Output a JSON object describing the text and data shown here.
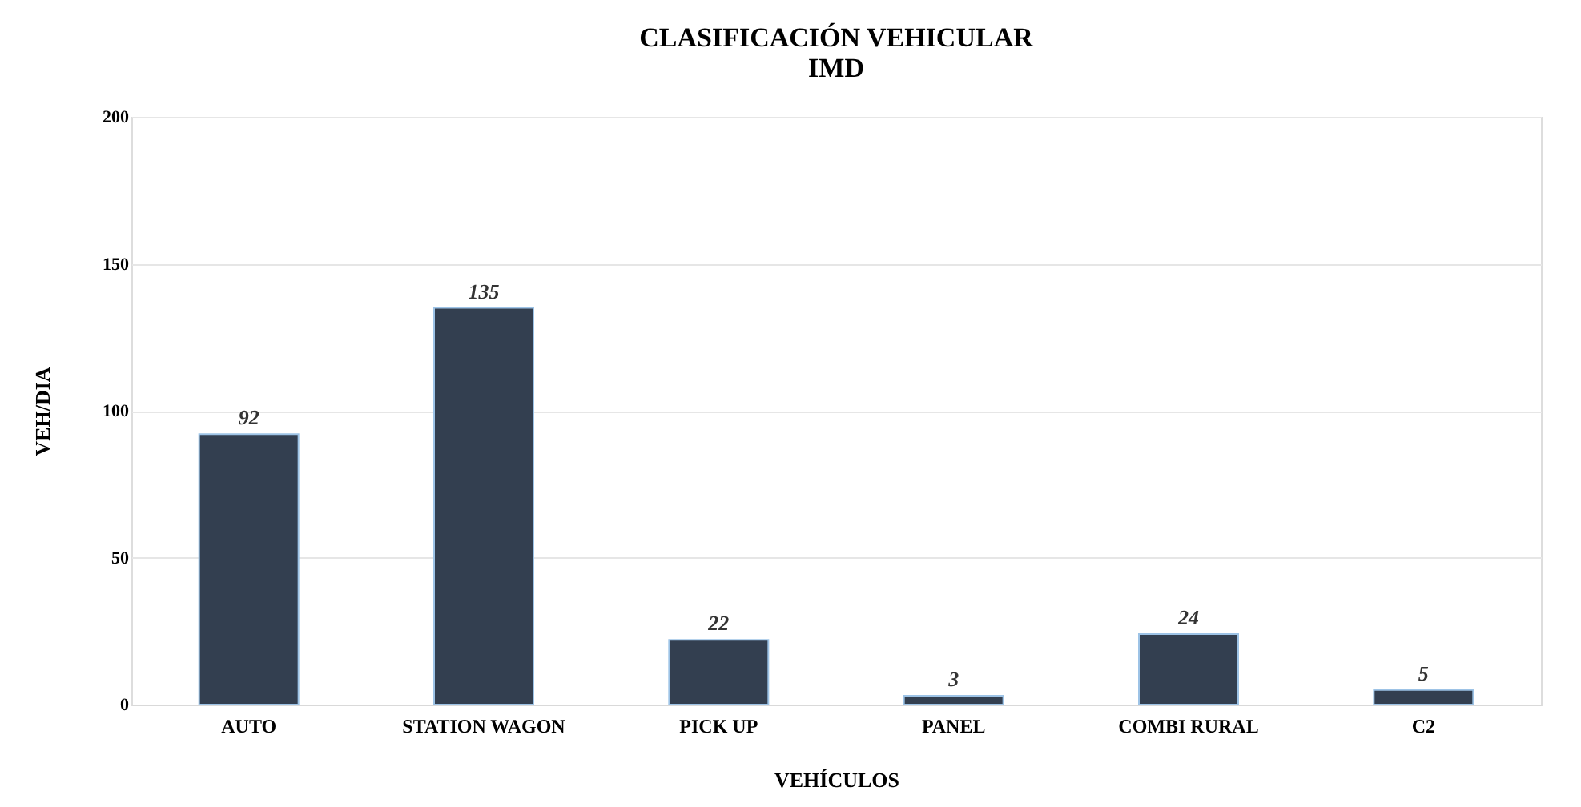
{
  "chart_data": {
    "type": "bar",
    "title": "CLASIFICACIÓN VEHICULAR",
    "subtitle": "IMD",
    "xlabel": "VEHÍCULOS",
    "ylabel": "VEH/DIA",
    "categories": [
      "AUTO",
      "STATION WAGON",
      "PICK UP",
      "PANEL",
      "COMBI RURAL",
      "C2"
    ],
    "values": [
      92,
      135,
      22,
      3,
      24,
      5
    ],
    "color": "#333f50",
    "ylim": [
      0,
      200
    ],
    "yticks": [
      0,
      50,
      100,
      150,
      200
    ],
    "grid": "y",
    "data_labels": true
  }
}
